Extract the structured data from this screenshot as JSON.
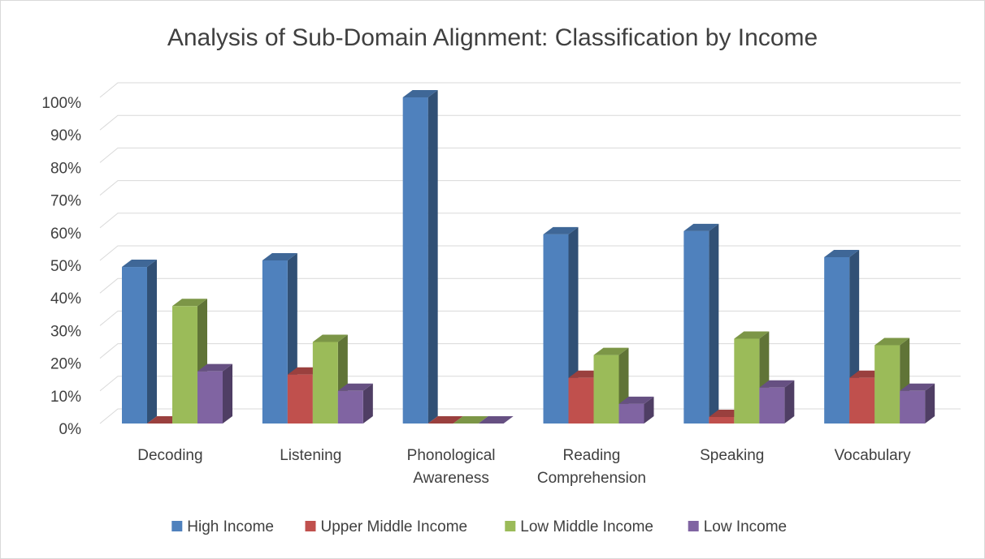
{
  "chart_data": {
    "type": "bar3d",
    "title": "Analysis of Sub-Domain Alignment: Classification by Income",
    "categories": [
      "Decoding",
      "Listening",
      "Phonological Awareness",
      "Reading Comprehension",
      "Speaking",
      "Vocabulary"
    ],
    "series": [
      {
        "name": "High Income",
        "color": "#4f81bd",
        "values": [
          48,
          50,
          100,
          58,
          59,
          51
        ]
      },
      {
        "name": "Upper Middle Income",
        "color": "#c0504d",
        "values": [
          0,
          15,
          0,
          14,
          2,
          14
        ]
      },
      {
        "name": "Low Middle Income",
        "color": "#9bbb59",
        "values": [
          36,
          25,
          0,
          21,
          26,
          24
        ]
      },
      {
        "name": "Low Income",
        "color": "#8064a2",
        "values": [
          16,
          10,
          0,
          6,
          11,
          10
        ]
      }
    ],
    "ylim": [
      0,
      100
    ],
    "yticks": [
      {
        "value": 0,
        "label": "0%"
      },
      {
        "value": 10,
        "label": "10%"
      },
      {
        "value": 20,
        "label": "20%"
      },
      {
        "value": 30,
        "label": "30%"
      },
      {
        "value": 40,
        "label": "40%"
      },
      {
        "value": 50,
        "label": "50%"
      },
      {
        "value": 60,
        "label": "60%"
      },
      {
        "value": 70,
        "label": "70%"
      },
      {
        "value": 80,
        "label": "80%"
      },
      {
        "value": 90,
        "label": "90%"
      },
      {
        "value": 100,
        "label": "100%"
      }
    ],
    "grid": true,
    "legend": "bottom"
  }
}
